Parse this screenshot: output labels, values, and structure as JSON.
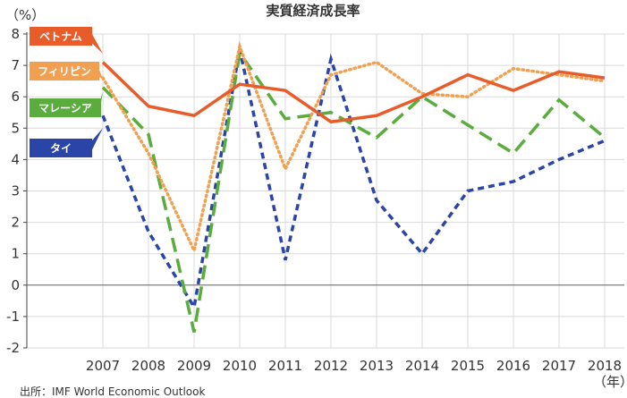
{
  "chart_data": {
    "type": "line",
    "title": "実質経済成長率",
    "ylabel": "（%）",
    "xlabel": "（年）",
    "ylim": [
      -2,
      8
    ],
    "yticks": [
      "8",
      "7",
      "6",
      "5",
      "4",
      "3",
      "2",
      "1",
      "0",
      "-1",
      "-2"
    ],
    "categories": [
      "2007",
      "2008",
      "2009",
      "2010",
      "2011",
      "2012",
      "2013",
      "2014",
      "2015",
      "2016",
      "2017",
      "2018"
    ],
    "grid": true,
    "legend": "left",
    "series": [
      {
        "name": "ベトナム",
        "color": "#e85c2a",
        "style": "solid",
        "values": [
          7.1,
          5.7,
          5.4,
          6.4,
          6.2,
          5.2,
          5.4,
          6.0,
          6.7,
          6.2,
          6.8,
          6.6
        ]
      },
      {
        "name": "フィリピン",
        "color": "#f0a050",
        "style": "dotted",
        "values": [
          6.6,
          4.2,
          1.1,
          7.6,
          3.7,
          6.7,
          7.1,
          6.1,
          6.0,
          6.9,
          6.7,
          6.5
        ]
      },
      {
        "name": "マレーシア",
        "color": "#5aac3c",
        "style": "dashed",
        "values": [
          6.3,
          4.8,
          -1.5,
          7.4,
          5.3,
          5.5,
          4.7,
          6.0,
          5.1,
          4.2,
          5.9,
          4.7
        ]
      },
      {
        "name": "タイ",
        "color": "#2b44a8",
        "style": "short-dash",
        "values": [
          5.4,
          1.7,
          -0.7,
          7.5,
          0.8,
          7.2,
          2.7,
          1.0,
          3.0,
          3.3,
          4.0,
          4.6
        ]
      }
    ],
    "source": "出所：IMF World Economic Outlook"
  }
}
